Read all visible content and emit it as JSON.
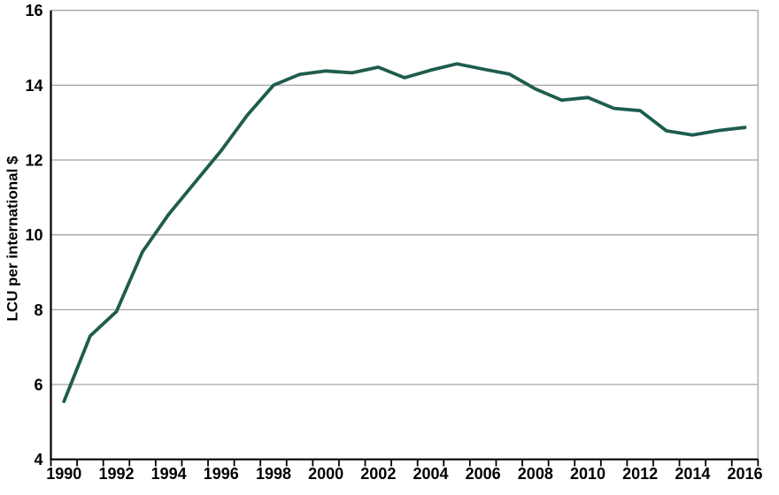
{
  "chart_data": {
    "type": "line",
    "title": "",
    "xlabel": "",
    "ylabel": "LCU per international $",
    "x": [
      1990,
      1991,
      1992,
      1993,
      1994,
      1995,
      1996,
      1997,
      1998,
      1999,
      2000,
      2001,
      2002,
      2003,
      2004,
      2005,
      2006,
      2007,
      2008,
      2009,
      2010,
      2011,
      2012,
      2013,
      2014,
      2015,
      2016
    ],
    "series": [
      {
        "name": "LCU per international $",
        "color": "#1e5c4e",
        "values": [
          5.55,
          7.3,
          7.95,
          9.55,
          10.55,
          11.4,
          12.25,
          13.2,
          14.0,
          14.29,
          14.38,
          14.33,
          14.48,
          14.2,
          14.4,
          14.57,
          14.43,
          14.3,
          13.9,
          13.6,
          13.67,
          13.38,
          13.32,
          12.78,
          12.67,
          12.79,
          12.87
        ]
      }
    ],
    "ylim": [
      4,
      16
    ],
    "y_tick_labels": [
      "4",
      "6",
      "8",
      "10",
      "12",
      "14",
      "16"
    ],
    "x_tick_labels": [
      "1990",
      "1992",
      "1994",
      "1996",
      "1998",
      "2000",
      "2002",
      "2004",
      "2006",
      "2008",
      "2010",
      "2012",
      "2014",
      "2016"
    ],
    "x_label_interval_years": 2,
    "grid": "horizontal",
    "legend": "none",
    "colors": {
      "line": "#1e5c4e",
      "gridline": "#a3a3a3",
      "axis": "#000000",
      "plot_right_border": "#b0b0b0",
      "background": "#ffffff"
    }
  }
}
